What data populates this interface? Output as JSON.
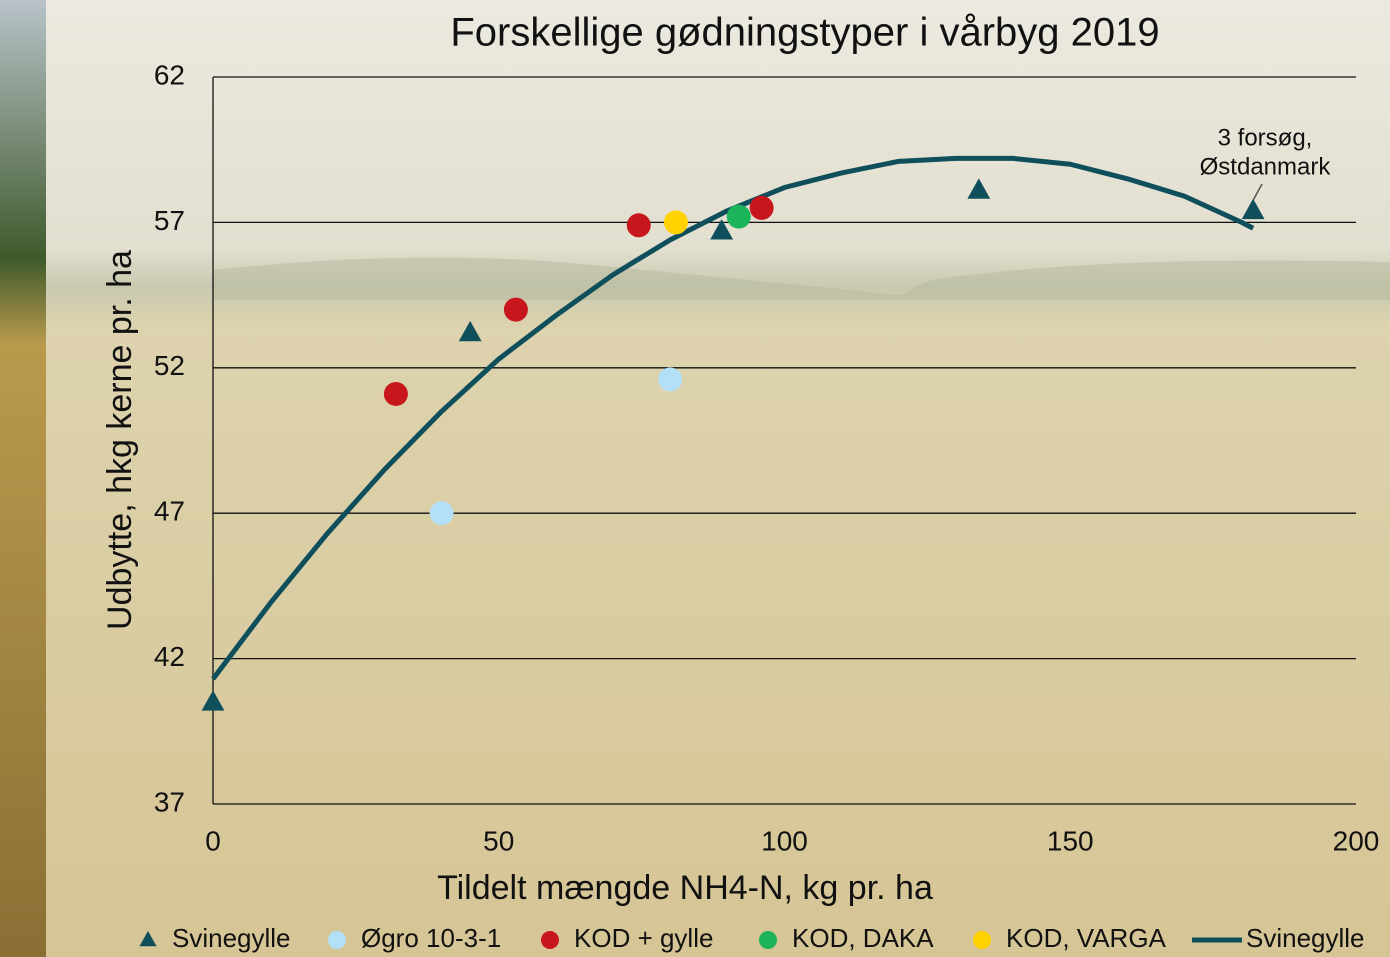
{
  "chart_data": {
    "type": "scatter",
    "title": "Forskellige gødningstyper i vårbyg 2019",
    "x_label": "Tildelt mængde NH4-N, kg pr. ha",
    "y_label": "Udbytte, hkg kerne pr. ha",
    "annotation": [
      "3 forsøg,",
      "Østdanmark"
    ],
    "xlim": [
      0,
      200
    ],
    "xticks": [
      0,
      50,
      100,
      150,
      200
    ],
    "ylim": [
      37,
      62
    ],
    "yticks": [
      37,
      42,
      47,
      52,
      57,
      62
    ],
    "grid": true,
    "legend": "bottom",
    "series": [
      {
        "name": "Svinegylle",
        "kind": "scatter",
        "marker": "triangle",
        "color": "#0f4f5b",
        "x": [
          0,
          45,
          89,
          134,
          182
        ],
        "values": [
          40.5,
          53.2,
          56.7,
          58.1,
          57.4
        ]
      },
      {
        "name": "Øgro 10-3-1",
        "kind": "scatter",
        "marker": "circle",
        "color": "#b3e0f7",
        "x": [
          40,
          80
        ],
        "values": [
          47.0,
          51.6
        ]
      },
      {
        "name": "KOD + gylle",
        "kind": "scatter",
        "marker": "circle",
        "color": "#c8161d",
        "x": [
          32,
          53,
          74.5,
          96
        ],
        "values": [
          51.1,
          54.0,
          56.9,
          57.5
        ]
      },
      {
        "name": "KOD, DAKA",
        "kind": "scatter",
        "marker": "circle",
        "color": "#1cb45a",
        "x": [
          92
        ],
        "values": [
          57.2
        ]
      },
      {
        "name": "KOD, VARGA",
        "kind": "scatter",
        "marker": "circle",
        "color": "#ffd200",
        "x": [
          81
        ],
        "values": [
          57.0
        ]
      },
      {
        "name": "Svinegylle",
        "kind": "line",
        "color": "#0f4f5b",
        "x": [
          0,
          10,
          20,
          30,
          40,
          50,
          60,
          70,
          80,
          90,
          100,
          110,
          120,
          130,
          140,
          150,
          160,
          170,
          180,
          182
        ],
        "values": [
          41.3,
          43.9,
          46.3,
          48.5,
          50.5,
          52.3,
          53.8,
          55.2,
          56.4,
          57.4,
          58.2,
          58.7,
          59.1,
          59.2,
          59.2,
          59.0,
          58.5,
          57.9,
          57.0,
          56.8
        ]
      }
    ]
  }
}
